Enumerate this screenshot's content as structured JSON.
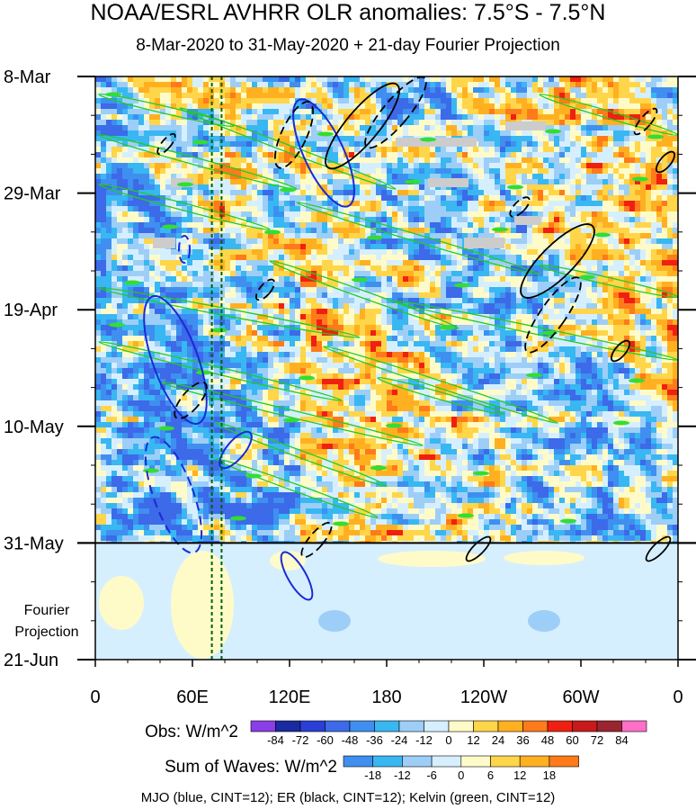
{
  "title": "NOAA/ESRL AVHRR OLR anomalies: 7.5°S - 7.5°N",
  "subtitle": "8-Mar-2020 to 31-May-2020 + 21-day Fourier Projection",
  "footer": "MJO (blue, CINT=12); ER (black, CINT=12); Kelvin (green, CINT=12)",
  "chart_data": {
    "type": "heatmap",
    "x_axis": {
      "ticks": [
        "0",
        "60E",
        "120E",
        "180",
        "120W",
        "60W",
        "0"
      ],
      "range_deg_east": [
        0,
        360
      ]
    },
    "y_axis": {
      "ticks": [
        "8-Mar",
        "29-Mar",
        "19-Apr",
        "10-May",
        "31-May",
        "21-Jun"
      ],
      "range": [
        "2020-03-08",
        "2020-06-21"
      ],
      "observation_end": "2020-05-31",
      "projection_label": [
        "Fourier",
        "Projection"
      ]
    },
    "reference_lines_lon_deg_east": [
      72,
      78
    ],
    "legend_obs": {
      "label": "Obs: W/m^2",
      "levels": [
        "-84",
        "-72",
        "-60",
        "-48",
        "-36",
        "-24",
        "-12",
        "0",
        "12",
        "24",
        "36",
        "48",
        "60",
        "72",
        "84"
      ],
      "colors": [
        "#8a3ee6",
        "#1a2aa0",
        "#2a3fd6",
        "#3c6ae8",
        "#3f8ff0",
        "#38b7f2",
        "#9dcef7",
        "#d6efff",
        "#fffbc9",
        "#ffd54a",
        "#ffb020",
        "#ff7a1a",
        "#f02010",
        "#c81a1a",
        "#9a2530",
        "#ff6fc8"
      ]
    },
    "legend_waves": {
      "label": "Sum of Waves: W/m^2",
      "levels": [
        "-18",
        "-12",
        "-6",
        "0",
        "6",
        "12",
        "18"
      ],
      "colors": [
        "#3f8ff0",
        "#38b7f2",
        "#9dcef7",
        "#d6efff",
        "#fffbc9",
        "#ffd54a",
        "#ffb020",
        "#ff7a1a"
      ]
    },
    "series": [
      {
        "name": "MJO",
        "color": "#1a2ad6"
      },
      {
        "name": "ER",
        "color": "#000000"
      },
      {
        "name": "Kelvin",
        "color": "#22cc22"
      }
    ]
  }
}
